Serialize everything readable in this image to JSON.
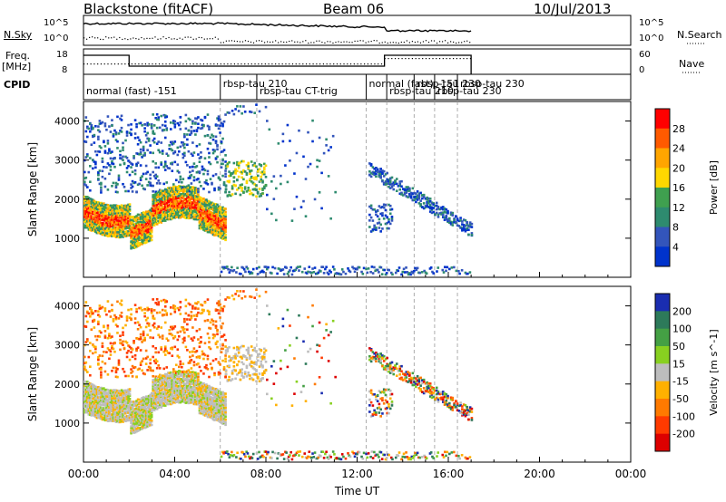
{
  "header": {
    "station": "Blackstone (fitACF)",
    "beam": "Beam 06",
    "date": "10/Jul/2013"
  },
  "strips": {
    "nsky_label": "N.Sky",
    "nsearch_label": "N.Search",
    "noise_ticks": [
      "10^5",
      "10^0"
    ],
    "freq_label_1": "Freq.",
    "freq_label_2": "[MHz]",
    "freq_ticks": [
      "18",
      "8"
    ],
    "nave_label": "Nave",
    "nave_ticks": [
      "60",
      "0"
    ],
    "cpid_label": "CPID"
  },
  "cpid_segments": [
    {
      "label": "normal (fast) -151",
      "start_h": 0.0
    },
    {
      "label": "rbsp-tau 210",
      "start_h": 6.0
    },
    {
      "label": "rbsp-tau CT-trig",
      "start_h": 7.6
    },
    {
      "label": "normal (fast) -151",
      "start_h": 12.4
    },
    {
      "label": "rbsp-tau 210",
      "start_h": 13.3
    },
    {
      "label": "rbsp-tau 230",
      "start_h": 14.5
    },
    {
      "label": "rbsp-tau 230",
      "start_h": 15.4
    },
    {
      "label": "rbsp-tau 230",
      "start_h": 16.4
    }
  ],
  "chart_data": [
    {
      "type": "heatmap",
      "name": "power",
      "ylabel": "Slant Range [km]",
      "colorbar_label": "Power [dB]",
      "colorbar_ticks": [
        28,
        24,
        20,
        16,
        12,
        8,
        4
      ],
      "colorbar_colors": [
        "#ff0000",
        "#ff5a00",
        "#ffa500",
        "#ffd700",
        "#3fa04f",
        "#2e8b6f",
        "#3355bb",
        "#0033cc"
      ],
      "ylim": [
        0,
        4500
      ],
      "yticks": [
        1000,
        2000,
        3000,
        4000
      ],
      "xlim_hours": [
        0,
        24
      ],
      "xticks": [
        "00:00",
        "04:00",
        "08:00",
        "12:00",
        "16:00",
        "20:00",
        "00:00"
      ]
    },
    {
      "type": "heatmap",
      "name": "velocity",
      "ylabel": "Slant Range [km]",
      "xlabel": "Time UT",
      "colorbar_label": "Velocity [m s^-1]",
      "colorbar_ticks": [
        200,
        100,
        50,
        15,
        -15,
        -50,
        -100,
        -200
      ],
      "colorbar_colors": [
        "#1a2db0",
        "#2d7a5a",
        "#44a044",
        "#88d020",
        "#bdbdbd",
        "#ffb000",
        "#ff7a00",
        "#ff3a00",
        "#dd0000"
      ],
      "ylim": [
        0,
        4500
      ],
      "yticks": [
        1000,
        2000,
        3000,
        4000
      ],
      "xlim_hours": [
        0,
        24
      ],
      "xticks": [
        "00:00",
        "04:00",
        "08:00",
        "12:00",
        "16:00",
        "20:00",
        "00:00"
      ]
    }
  ]
}
